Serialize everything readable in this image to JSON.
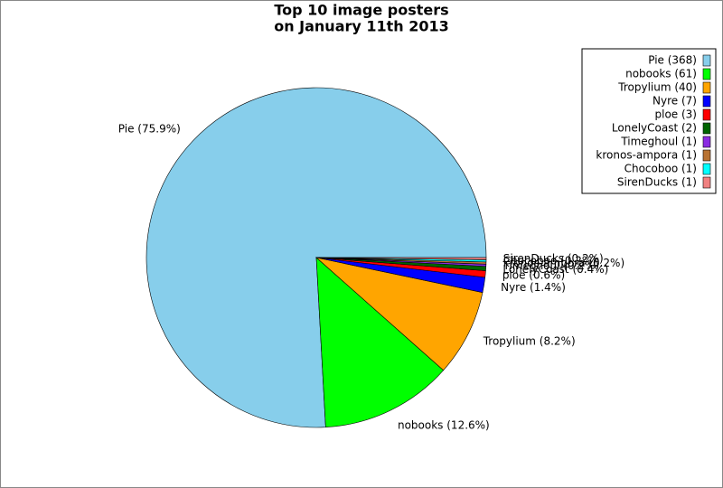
{
  "chart_data": {
    "type": "pie",
    "title": [
      "Top 10 image posters",
      "on January 11th 2013"
    ],
    "categories": [
      "Pie",
      "nobooks",
      "Tropylium",
      "Nyre",
      "ploe",
      "LonelyCoast",
      "Timeghoul",
      "kronos-ampora",
      "Chocoboo",
      "SirenDucks"
    ],
    "values": [
      368,
      61,
      40,
      7,
      3,
      2,
      1,
      1,
      1,
      1
    ],
    "value_labels": [
      "Pie (75.9%)",
      "nobooks (12.6%)",
      "Tropylium (8.2%)",
      "Nyre (1.4%)",
      "ploe (0.6%)",
      "LonelyCoast (0.4%)",
      "Timeghoul (0.2%)",
      "kronos-ampora (0.2%)",
      "Chocoboo (0.2%)",
      "SirenDucks (0.2%)"
    ],
    "legend_labels": [
      "Pie (368)",
      "nobooks (61)",
      "Tropylium (40)",
      "Nyre (7)",
      "ploe (3)",
      "LonelyCoast (2)",
      "Timeghoul (1)",
      "kronos-ampora (1)",
      "Chocoboo (1)",
      "SirenDucks (1)"
    ],
    "colors": [
      "#87ceeb",
      "#00ff00",
      "#ffa500",
      "#0000ff",
      "#ff0000",
      "#006400",
      "#8a2be2",
      "#b87333",
      "#00ffff",
      "#f08080"
    ],
    "legend_position": "upper right"
  }
}
